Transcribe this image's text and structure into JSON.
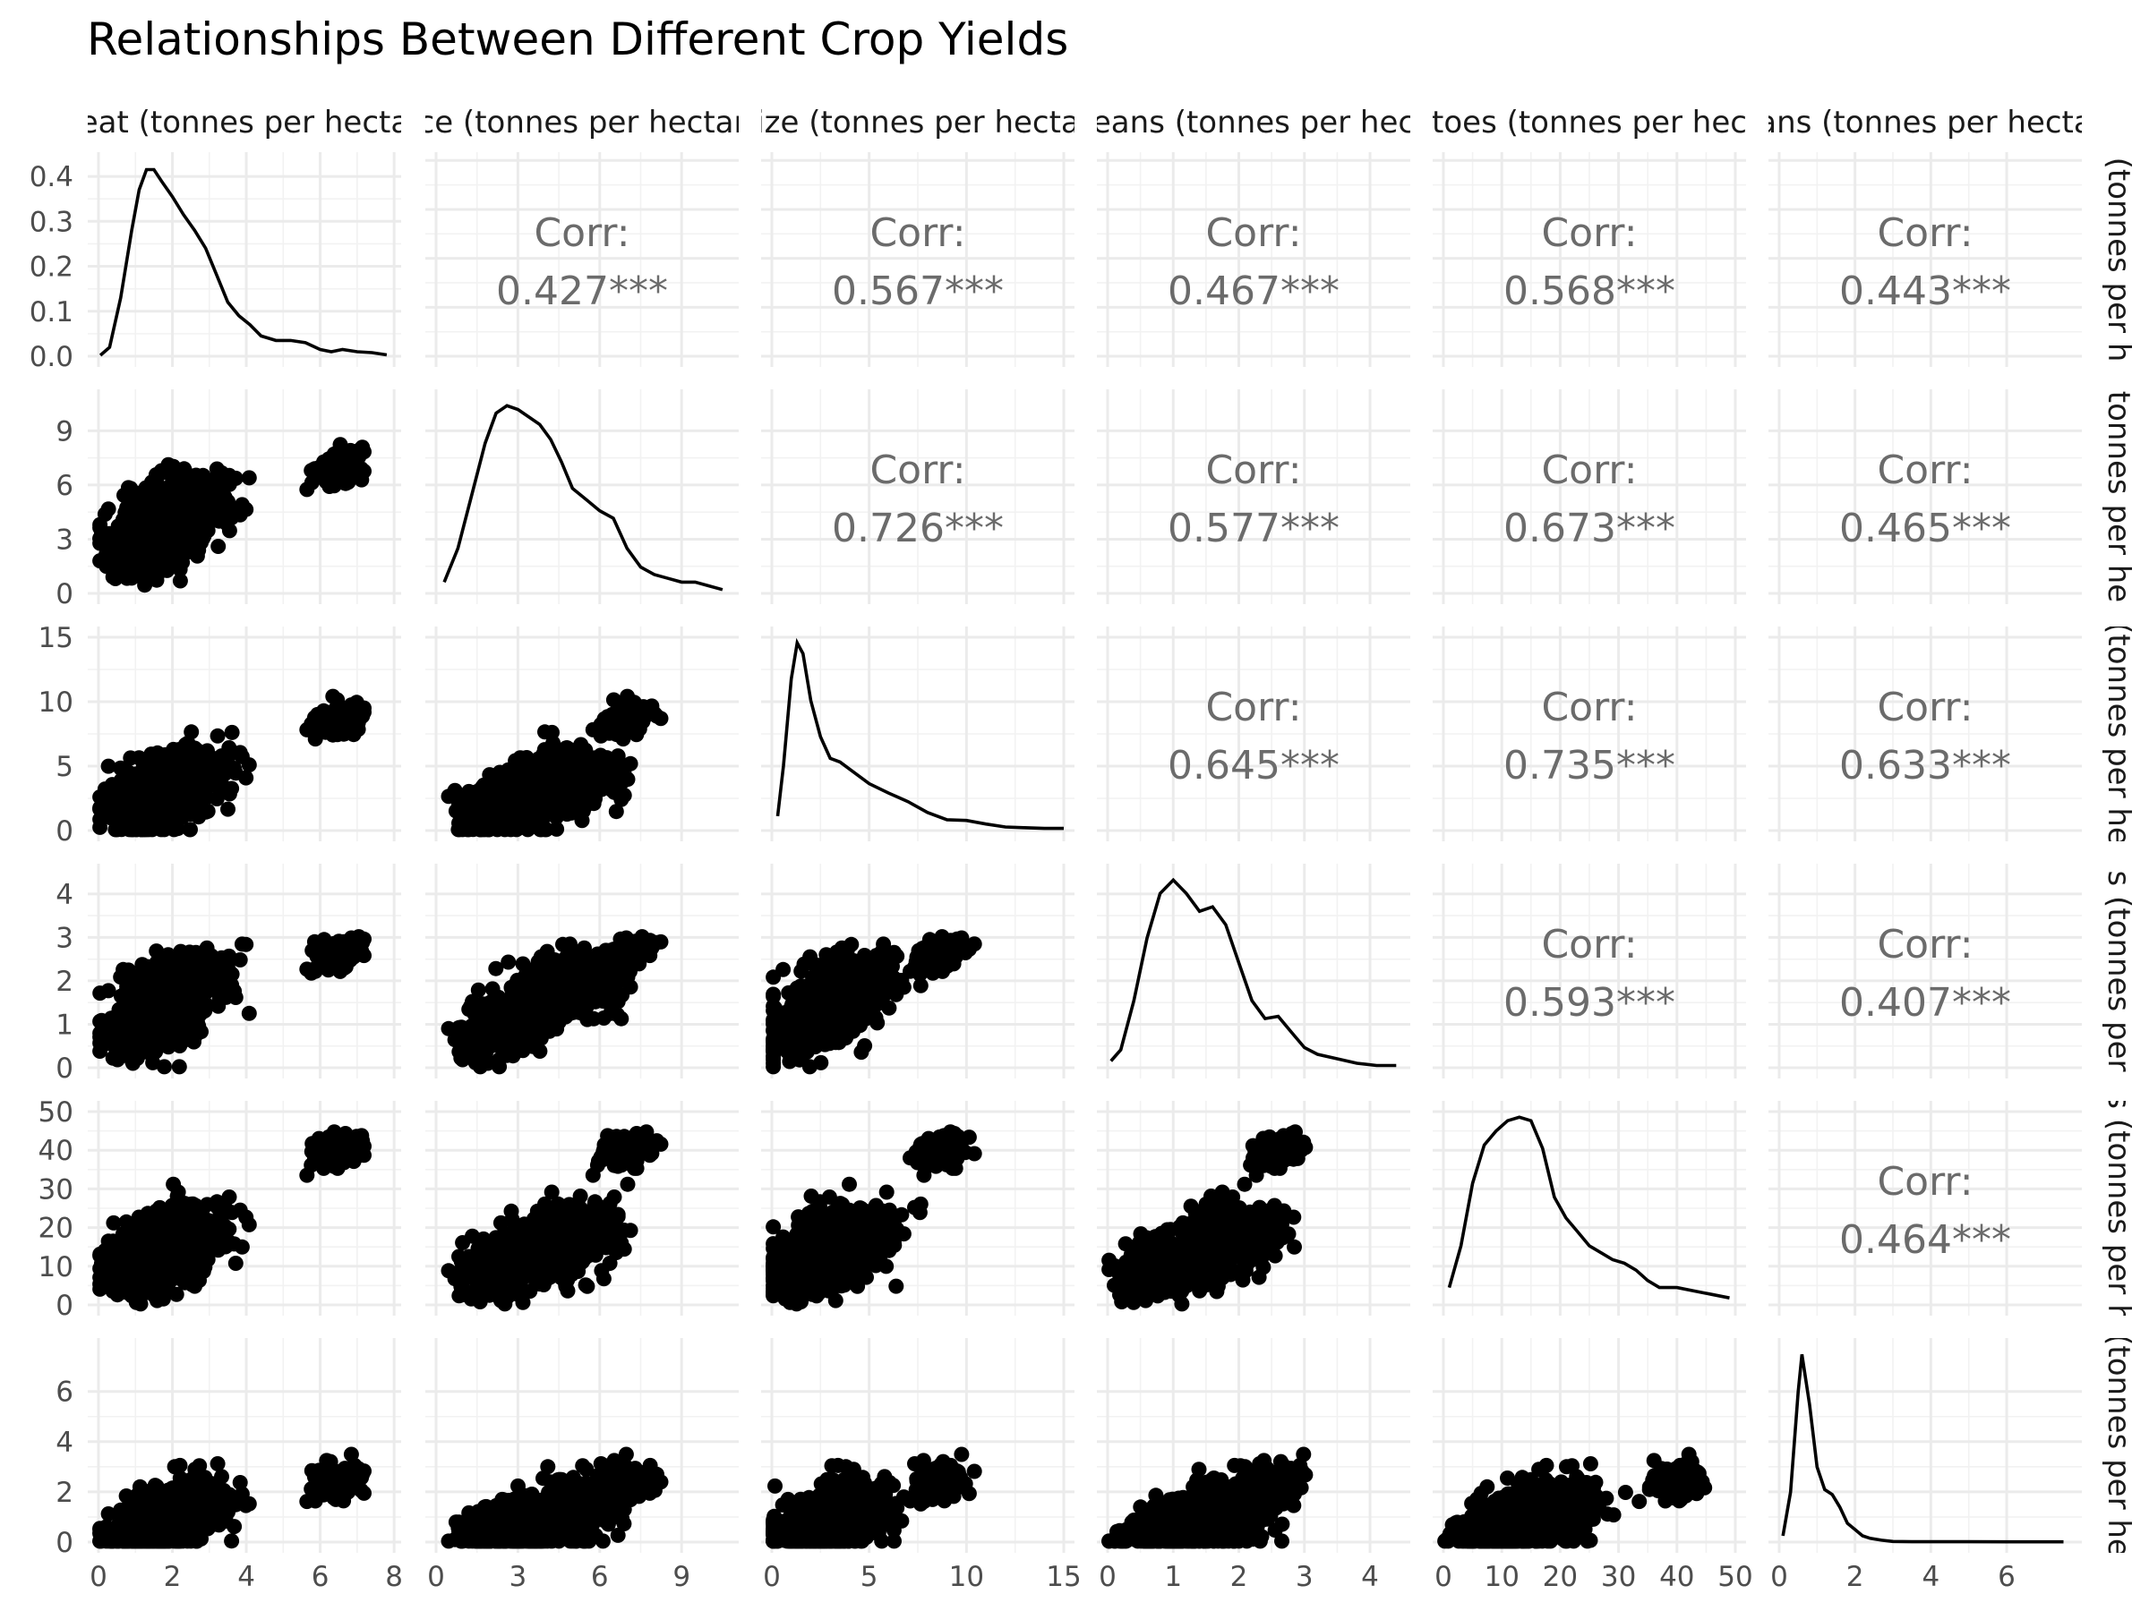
{
  "chart_data": {
    "type": "scatter",
    "title": "Relationships Between Different Crop Yields",
    "layout": "pairs-matrix",
    "variables": [
      {
        "key": "wheat",
        "strip": "eat (tonnes per hecta",
        "side": "(tonnes per h",
        "range": [
          0,
          7.9
        ],
        "ticks": [
          0,
          2,
          4,
          6,
          8
        ]
      },
      {
        "key": "rice",
        "strip": "ce (tonnes per hectar",
        "side": "tonnes per he",
        "range": [
          0,
          10.7
        ],
        "ticks": [
          0,
          3,
          6,
          9
        ]
      },
      {
        "key": "maize",
        "strip": "ize (tonnes per hecta",
        "side": "(tonnes per he",
        "range": [
          0,
          15
        ],
        "ticks": [
          0,
          5,
          10,
          15
        ]
      },
      {
        "key": "soybeans",
        "strip": "eans (tonnes per hec",
        "side": "s (tonnes per",
        "range": [
          0,
          4.45
        ],
        "ticks": [
          0,
          1,
          2,
          3,
          4
        ]
      },
      {
        "key": "potatoes",
        "strip": "toes (tonnes per hec",
        "side": "s (tonnes per h",
        "range": [
          0,
          50
        ],
        "ticks": [
          0,
          10,
          20,
          30,
          40,
          50
        ]
      },
      {
        "key": "beans",
        "strip": "ans (tonnes per hecta",
        "side": "(tonnes per he",
        "range": [
          0,
          7.7
        ],
        "ticks": [
          0,
          2,
          4,
          6
        ]
      }
    ],
    "diag_density_axis": {
      "range": [
        0,
        0.43
      ],
      "ticks": [
        "0.0",
        "0.1",
        "0.2",
        "0.3",
        "0.4"
      ]
    },
    "correlation_label": "Corr:",
    "correlations": [
      {
        "row": 0,
        "col": 1,
        "value": "0.427***"
      },
      {
        "row": 0,
        "col": 2,
        "value": "0.567***"
      },
      {
        "row": 0,
        "col": 3,
        "value": "0.467***"
      },
      {
        "row": 0,
        "col": 4,
        "value": "0.568***"
      },
      {
        "row": 0,
        "col": 5,
        "value": "0.443***"
      },
      {
        "row": 1,
        "col": 2,
        "value": "0.726***"
      },
      {
        "row": 1,
        "col": 3,
        "value": "0.577***"
      },
      {
        "row": 1,
        "col": 4,
        "value": "0.673***"
      },
      {
        "row": 1,
        "col": 5,
        "value": "0.465***"
      },
      {
        "row": 2,
        "col": 3,
        "value": "0.645***"
      },
      {
        "row": 2,
        "col": 4,
        "value": "0.735***"
      },
      {
        "row": 2,
        "col": 5,
        "value": "0.633***"
      },
      {
        "row": 3,
        "col": 4,
        "value": "0.593***"
      },
      {
        "row": 3,
        "col": 5,
        "value": "0.407***"
      },
      {
        "row": 4,
        "col": 5,
        "value": "0.464***"
      }
    ],
    "densities": [
      {
        "var": "wheat",
        "x": [
          0.05,
          0.3,
          0.6,
          0.9,
          1.1,
          1.3,
          1.5,
          1.7,
          2.0,
          2.3,
          2.6,
          2.9,
          3.2,
          3.5,
          3.8,
          4.1,
          4.4,
          4.8,
          5.2,
          5.6,
          6.0,
          6.3,
          6.6,
          7.0,
          7.4,
          7.8
        ],
        "y": [
          0.002,
          0.02,
          0.13,
          0.28,
          0.37,
          0.415,
          0.415,
          0.39,
          0.355,
          0.315,
          0.28,
          0.24,
          0.18,
          0.12,
          0.09,
          0.07,
          0.045,
          0.035,
          0.035,
          0.03,
          0.015,
          0.01,
          0.015,
          0.01,
          0.008,
          0.003
        ]
      },
      {
        "var": "rice",
        "x": [
          0.3,
          0.8,
          1.3,
          1.8,
          2.2,
          2.6,
          3.0,
          3.4,
          3.8,
          4.2,
          4.6,
          5.0,
          5.5,
          6.0,
          6.5,
          7.0,
          7.5,
          8.0,
          8.5,
          9.0,
          9.5,
          10.0,
          10.5
        ],
        "y": [
          0.03,
          0.12,
          0.26,
          0.4,
          0.48,
          0.5,
          0.49,
          0.47,
          0.45,
          0.41,
          0.35,
          0.28,
          0.25,
          0.22,
          0.2,
          0.12,
          0.07,
          0.05,
          0.04,
          0.03,
          0.03,
          0.02,
          0.01
        ]
      },
      {
        "var": "maize",
        "x": [
          0.3,
          0.6,
          1.0,
          1.3,
          1.6,
          2.0,
          2.5,
          3.0,
          3.5,
          4.0,
          5.0,
          6.0,
          7.0,
          8.0,
          9.0,
          10.0,
          11.0,
          12.0,
          13.0,
          14.0,
          15.0
        ],
        "y": [
          0.02,
          0.09,
          0.21,
          0.26,
          0.245,
          0.18,
          0.13,
          0.1,
          0.095,
          0.085,
          0.065,
          0.052,
          0.04,
          0.025,
          0.015,
          0.014,
          0.009,
          0.005,
          0.004,
          0.003,
          0.003
        ]
      },
      {
        "var": "soybeans",
        "x": [
          0.05,
          0.2,
          0.4,
          0.6,
          0.8,
          1.0,
          1.2,
          1.4,
          1.6,
          1.8,
          2.0,
          2.2,
          2.4,
          2.6,
          2.8,
          3.0,
          3.2,
          3.5,
          3.8,
          4.1,
          4.4
        ],
        "y": [
          0.03,
          0.08,
          0.3,
          0.58,
          0.78,
          0.84,
          0.78,
          0.7,
          0.72,
          0.64,
          0.47,
          0.3,
          0.22,
          0.23,
          0.16,
          0.09,
          0.06,
          0.04,
          0.02,
          0.01,
          0.01
        ]
      },
      {
        "var": "potatoes",
        "x": [
          1,
          3,
          5,
          7,
          9,
          11,
          13,
          15,
          17,
          19,
          21,
          23,
          25,
          27,
          29,
          31,
          33,
          35,
          37,
          40,
          43,
          46,
          49
        ],
        "y": [
          0.005,
          0.017,
          0.035,
          0.046,
          0.05,
          0.053,
          0.054,
          0.053,
          0.045,
          0.031,
          0.025,
          0.021,
          0.017,
          0.015,
          0.013,
          0.012,
          0.01,
          0.007,
          0.005,
          0.005,
          0.004,
          0.003,
          0.002
        ]
      },
      {
        "var": "beans",
        "x": [
          0.1,
          0.3,
          0.5,
          0.6,
          0.8,
          1.0,
          1.2,
          1.4,
          1.6,
          1.8,
          2.0,
          2.2,
          2.4,
          2.7,
          3.0,
          3.5,
          4.0,
          5.0,
          6.0,
          7.5
        ],
        "y": [
          0.05,
          0.4,
          1.2,
          1.5,
          1.1,
          0.6,
          0.42,
          0.38,
          0.28,
          0.15,
          0.1,
          0.05,
          0.03,
          0.015,
          0.005,
          0.003,
          0.003,
          0.003,
          0.002,
          0.002
        ]
      }
    ],
    "points": {
      "note_n": 900,
      "clusters": [
        {
          "wheat": 2.0,
          "rice": 4.5,
          "maize": 3.5,
          "soybeans": 1.7,
          "potatoes": 16,
          "beans": 1.0,
          "weight": 0.55,
          "spread": 0.55
        },
        {
          "wheat": 1.5,
          "rice": 2.5,
          "maize": 2.0,
          "soybeans": 0.9,
          "potatoes": 10,
          "beans": 0.6,
          "weight": 0.3,
          "spread": 0.45
        },
        {
          "wheat": 6.5,
          "rice": 7.0,
          "maize": 8.5,
          "soybeans": 2.6,
          "potatoes": 40,
          "beans": 2.4,
          "weight": 0.15,
          "spread": 0.25
        }
      ]
    }
  }
}
